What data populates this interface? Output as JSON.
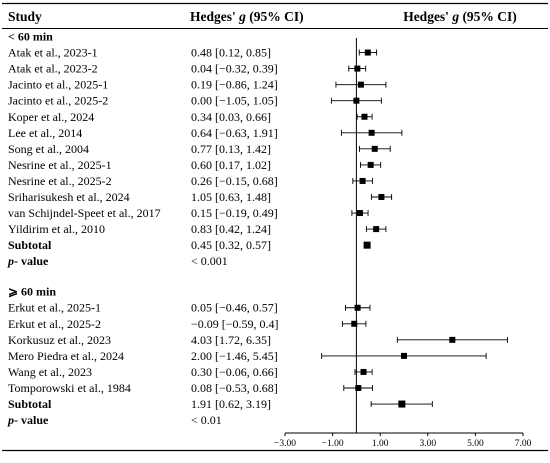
{
  "headers": {
    "study": "Study",
    "effect_prefix": "Hedges' ",
    "effect_symbol": "g",
    "effect_suffix": " (95% CI)"
  },
  "chart_data": {
    "type": "forest",
    "xlim": [
      -3.0,
      7.0
    ],
    "x_ticks": [
      "−3.00",
      "−1.00",
      "1.00",
      "3.00",
      "5.00",
      "7.00"
    ],
    "x_tick_values": [
      -3,
      -1,
      1,
      3,
      5,
      7
    ],
    "reference_line": 0,
    "groups": [
      {
        "title": "< 60 min",
        "studies": [
          {
            "label": "Atak et al., 2023-1",
            "text": "0.48 [0.12, 0.85]",
            "g": 0.48,
            "lo": 0.12,
            "hi": 0.85
          },
          {
            "label": "Atak et al., 2023-2",
            "text": "0.04 [−0.32, 0.39]",
            "g": 0.04,
            "lo": -0.32,
            "hi": 0.39
          },
          {
            "label": "Jacinto et al., 2025-1",
            "text": "0.19 [−0.86, 1.24]",
            "g": 0.19,
            "lo": -0.86,
            "hi": 1.24
          },
          {
            "label": "Jacinto et al., 2025-2",
            "text": "0.00 [−1.05, 1.05]",
            "g": 0.0,
            "lo": -1.05,
            "hi": 1.05
          },
          {
            "label": "Koper et al., 2024",
            "text": "0.34 [0.03, 0.66]",
            "g": 0.34,
            "lo": 0.03,
            "hi": 0.66
          },
          {
            "label": "Lee et al., 2014",
            "text": "0.64 [−0.63, 1.91]",
            "g": 0.64,
            "lo": -0.63,
            "hi": 1.91
          },
          {
            "label": "Song et al., 2004",
            "text": "0.77 [0.13, 1.42]",
            "g": 0.77,
            "lo": 0.13,
            "hi": 1.42
          },
          {
            "label": "Nesrine et al., 2025-1",
            "text": "0.60 [0.17, 1.02]",
            "g": 0.6,
            "lo": 0.17,
            "hi": 1.02
          },
          {
            "label": "Nesrine et al., 2025-2",
            "text": "0.26 [−0.15, 0.68]",
            "g": 0.26,
            "lo": -0.15,
            "hi": 0.68
          },
          {
            "label": "Sriharisukesh et al., 2024",
            "text": "1.05 [0.63, 1.48]",
            "g": 1.05,
            "lo": 0.63,
            "hi": 1.48
          },
          {
            "label": "van Schijndel-Speet et al., 2017",
            "text": "0.15 [−0.19, 0.49]",
            "g": 0.15,
            "lo": -0.19,
            "hi": 0.49
          },
          {
            "label": "Yildirim et al., 2010",
            "text": "0.83 [0.42, 1.24]",
            "g": 0.83,
            "lo": 0.42,
            "hi": 1.24
          }
        ],
        "subtotal": {
          "label": "Subtotal",
          "text": "0.45 [0.32, 0.57]",
          "g": 0.45,
          "lo": 0.32,
          "hi": 0.57,
          "no_ci_bar": true
        },
        "p_value": {
          "label_symbol": "p",
          "label_suffix": "- value",
          "text": "< 0.001"
        }
      },
      {
        "title": "⩾ 60 min",
        "studies": [
          {
            "label": "Erkut et al., 2025-1",
            "text": "0.05 [−0.46, 0.57]",
            "g": 0.05,
            "lo": -0.46,
            "hi": 0.57
          },
          {
            "label": "Erkut et al., 2025-2",
            "text": "−0.09 [−0.59, 0.4]",
            "g": -0.09,
            "lo": -0.59,
            "hi": 0.4
          },
          {
            "label": "Korkusuz et al., 2023",
            "text": "4.03 [1.72, 6.35]",
            "g": 4.03,
            "lo": 1.72,
            "hi": 6.35
          },
          {
            "label": "Mero Piedra et al., 2024",
            "text": "2.00 [−1.46, 5.45]",
            "g": 2.0,
            "lo": -1.46,
            "hi": 5.45
          },
          {
            "label": "Wang et al., 2023",
            "text": "0.30 [−0.06, 0.66]",
            "g": 0.3,
            "lo": -0.06,
            "hi": 0.66
          },
          {
            "label": "Tomporowski et al., 1984",
            "text": "0.08 [−0.53, 0.68]",
            "g": 0.08,
            "lo": -0.53,
            "hi": 0.68
          }
        ],
        "subtotal": {
          "label": "Subtotal",
          "text": "1.91 [0.62, 3.19]",
          "g": 1.91,
          "lo": 0.62,
          "hi": 3.19
        },
        "p_value": {
          "label_symbol": "p",
          "label_suffix": "- value",
          "text": "< 0.01"
        }
      }
    ]
  }
}
